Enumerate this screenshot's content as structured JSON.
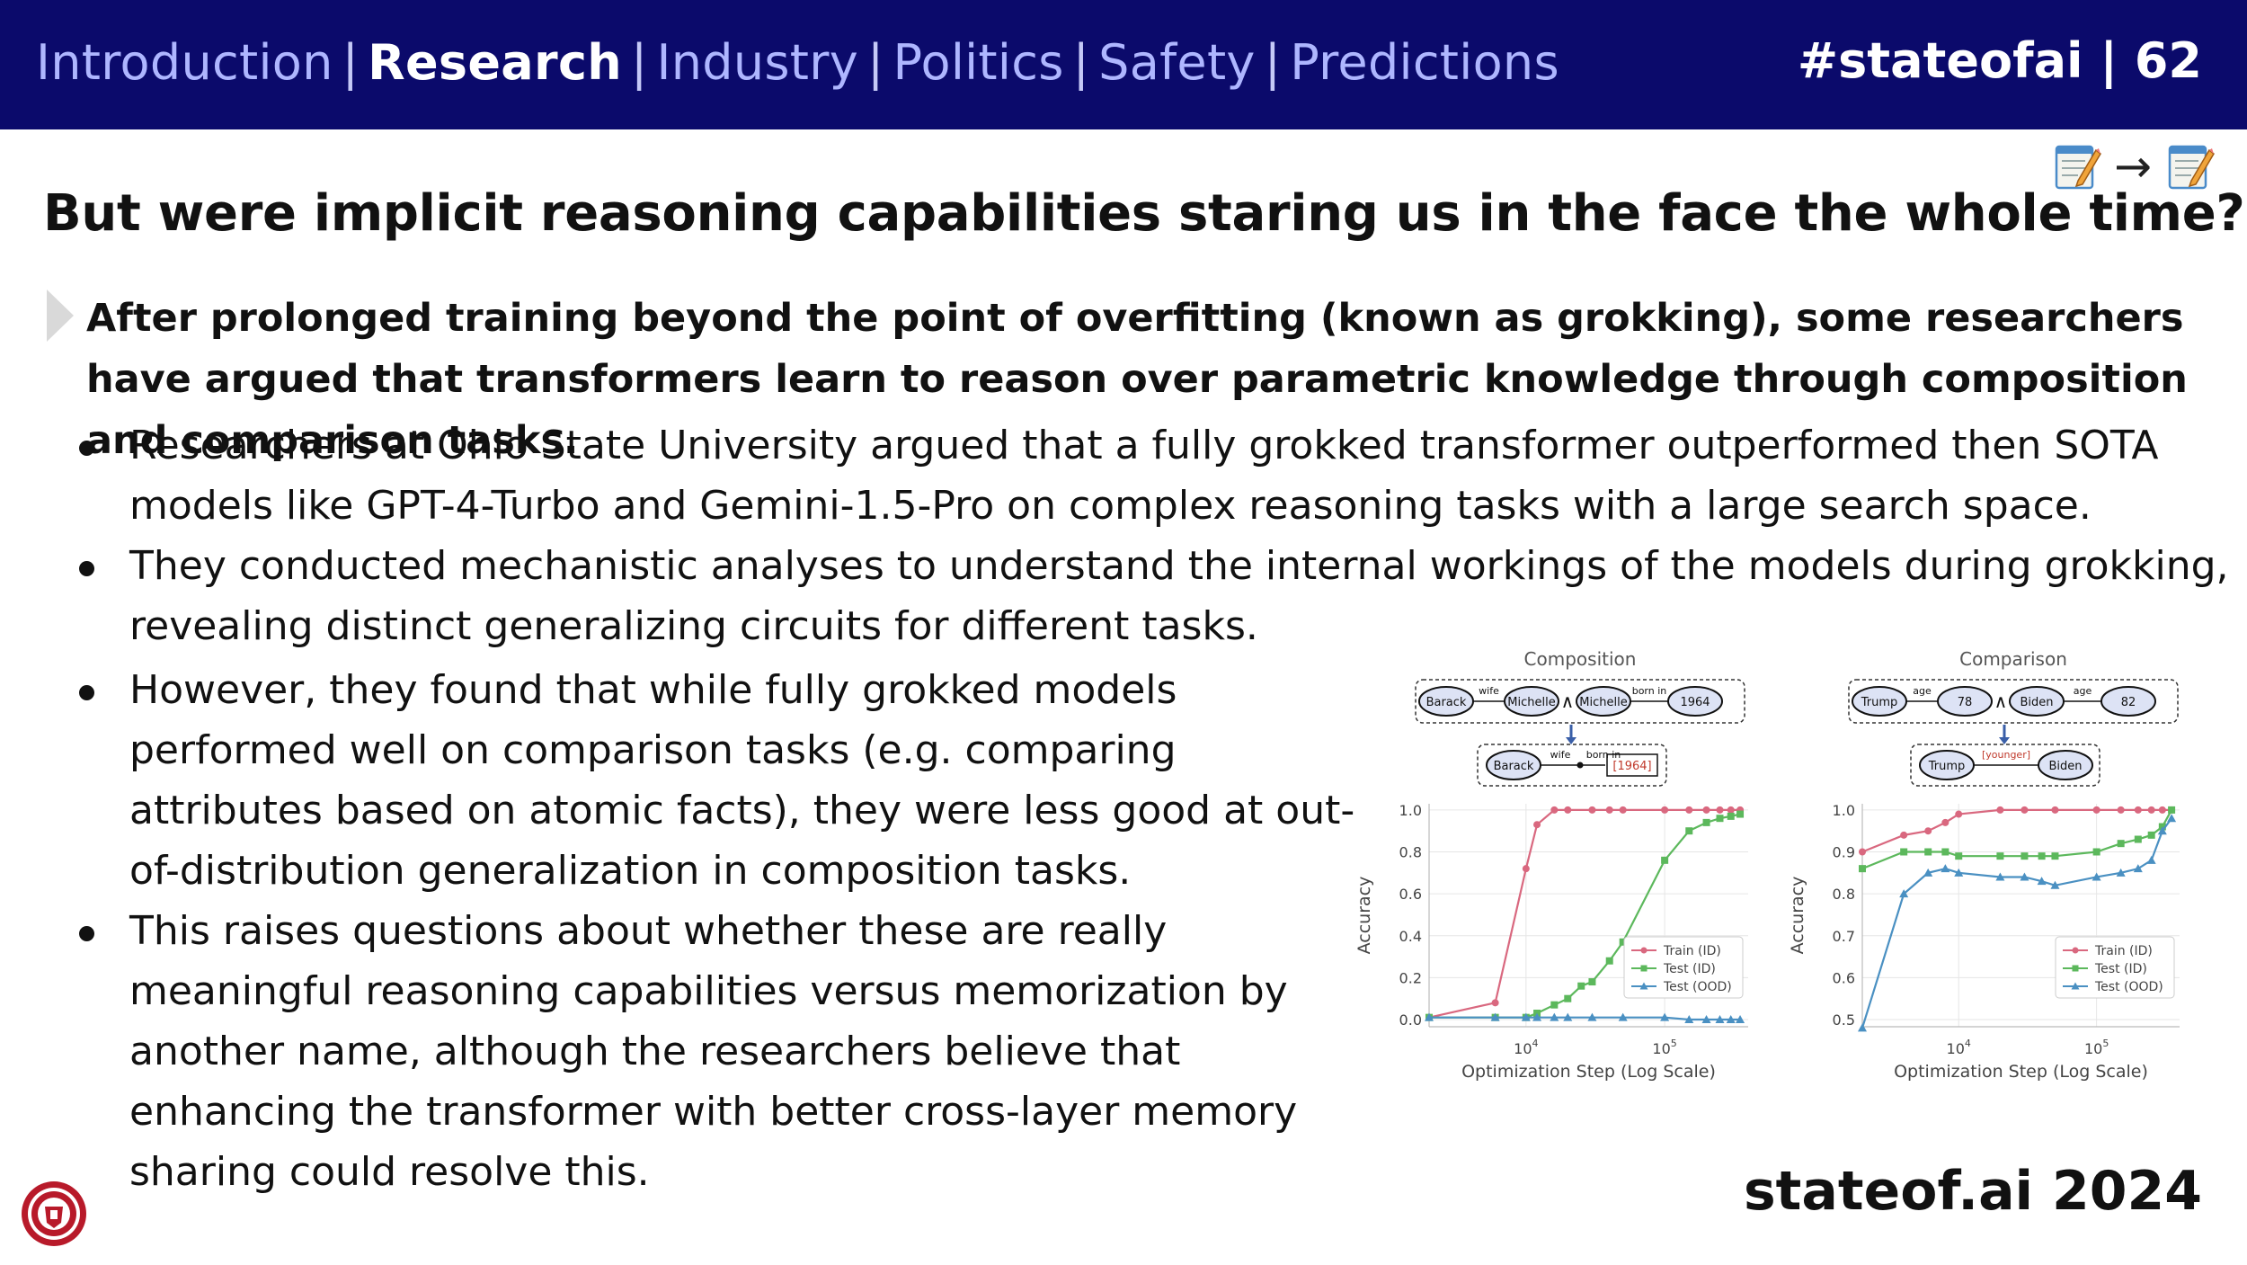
{
  "header": {
    "nav": [
      {
        "label": "Introduction",
        "active": false
      },
      {
        "label": "Research",
        "active": true
      },
      {
        "label": "Industry",
        "active": false
      },
      {
        "label": "Politics",
        "active": false
      },
      {
        "label": "Safety",
        "active": false
      },
      {
        "label": "Predictions",
        "active": false
      }
    ],
    "separator": "|",
    "hashtag": "#stateofai | 62"
  },
  "emoji_arrow": "→",
  "title": "But were implicit reasoning capabilities staring us in the face the whole time?",
  "lead": "After prolonged training beyond the point of overfitting (known as grokking), some researchers have argued that transformers learn to reason over parametric knowledge through composition and comparison tasks.",
  "bullets": [
    "Researchers at Ohio State University argued that a fully grokked transformer outperformed then SOTA models like GPT-4-Turbo and Gemini-1.5-Pro on complex reasoning tasks with a large search space.",
    "They conducted mechanistic analyses to understand the internal workings of the models during grokking, revealing distinct generalizing circuits for different tasks.",
    "However, they found that while fully grokked models performed well on comparison tasks (e.g. comparing attributes based on atomic facts), they were less good at out-of-distribution generalization in composition tasks.",
    "This raises questions about whether these are really meaningful reasoning capabilities versus memorization by another name, although the researchers believe that enhancing the transformer with better cross-layer memory sharing could resolve this."
  ],
  "footer": {
    "brand": "stateof.ai 2024"
  },
  "colors": {
    "bar": "#0b0a6b",
    "train": "#d9687f",
    "test_id": "#5cb85c",
    "test_ood": "#4a90c2"
  },
  "chart_data": [
    {
      "type": "line",
      "title": "Composition",
      "diagram": {
        "top": {
          "nodes": [
            "Barack",
            "Michelle",
            "Michelle",
            "1964"
          ],
          "edges": [
            "wife",
            "born in"
          ],
          "operator": "∧"
        },
        "bottom": {
          "nodes": [
            "Barack",
            "[1964]"
          ],
          "edges": [
            "wife",
            "born in"
          ]
        }
      },
      "xlabel": "Optimization Step (Log Scale)",
      "ylabel": "Accuracy",
      "xscale": "log",
      "xlim": [
        2000,
        400000
      ],
      "ylim": [
        0,
        1.0
      ],
      "x_ticks": [
        {
          "value": 10000,
          "base": "10",
          "exp": "4"
        },
        {
          "value": 100000,
          "base": "10",
          "exp": "5"
        }
      ],
      "y_ticks": [
        "0.0",
        "0.2",
        "0.4",
        "0.6",
        "0.8",
        "1.0"
      ],
      "legend_position": "lower-right",
      "series": [
        {
          "name": "Train (ID)",
          "color": "#d9687f",
          "marker": "circle",
          "x": [
            2000,
            6000,
            10000,
            12000,
            16000,
            20000,
            30000,
            40000,
            50000,
            100000,
            150000,
            200000,
            250000,
            300000,
            350000
          ],
          "y": [
            0.01,
            0.08,
            0.72,
            0.93,
            1.0,
            1.0,
            1.0,
            1.0,
            1.0,
            1.0,
            1.0,
            1.0,
            1.0,
            1.0,
            1.0
          ]
        },
        {
          "name": "Test (ID)",
          "color": "#5cb85c",
          "marker": "square",
          "x": [
            2000,
            6000,
            10000,
            12000,
            16000,
            20000,
            25000,
            30000,
            40000,
            50000,
            100000,
            150000,
            200000,
            250000,
            300000,
            350000
          ],
          "y": [
            0.01,
            0.01,
            0.01,
            0.03,
            0.07,
            0.1,
            0.16,
            0.18,
            0.28,
            0.37,
            0.76,
            0.9,
            0.94,
            0.96,
            0.97,
            0.98
          ]
        },
        {
          "name": "Test (OOD)",
          "color": "#4a90c2",
          "marker": "triangle",
          "x": [
            2000,
            6000,
            10000,
            12000,
            16000,
            20000,
            30000,
            50000,
            100000,
            150000,
            200000,
            250000,
            300000,
            350000
          ],
          "y": [
            0.01,
            0.01,
            0.01,
            0.01,
            0.01,
            0.01,
            0.01,
            0.01,
            0.01,
            0.0,
            0.0,
            0.0,
            0.0,
            0.0
          ]
        }
      ]
    },
    {
      "type": "line",
      "title": "Comparison",
      "diagram": {
        "top": {
          "nodes": [
            "Trump",
            "78",
            "Biden",
            "82"
          ],
          "edges": [
            "age",
            "age"
          ],
          "operator": "∧"
        },
        "bottom": {
          "nodes": [
            "Trump",
            "Biden"
          ],
          "edges": [
            "[younger]"
          ]
        }
      },
      "xlabel": "Optimization Step (Log Scale)",
      "ylabel": "Accuracy",
      "xscale": "log",
      "xlim": [
        2000,
        400000
      ],
      "ylim": [
        0.5,
        1.0
      ],
      "x_ticks": [
        {
          "value": 10000,
          "base": "10",
          "exp": "4"
        },
        {
          "value": 100000,
          "base": "10",
          "exp": "5"
        }
      ],
      "y_ticks": [
        "0.5",
        "0.6",
        "0.7",
        "0.8",
        "0.9",
        "1.0"
      ],
      "legend_position": "lower-right",
      "series": [
        {
          "name": "Train (ID)",
          "color": "#d9687f",
          "marker": "circle",
          "x": [
            2000,
            4000,
            6000,
            8000,
            10000,
            20000,
            30000,
            50000,
            100000,
            150000,
            200000,
            250000,
            300000,
            350000
          ],
          "y": [
            0.9,
            0.94,
            0.95,
            0.97,
            0.99,
            1.0,
            1.0,
            1.0,
            1.0,
            1.0,
            1.0,
            1.0,
            1.0,
            1.0
          ]
        },
        {
          "name": "Test (ID)",
          "color": "#5cb85c",
          "marker": "square",
          "x": [
            2000,
            4000,
            6000,
            8000,
            10000,
            20000,
            30000,
            40000,
            50000,
            100000,
            150000,
            200000,
            250000,
            300000,
            350000
          ],
          "y": [
            0.86,
            0.9,
            0.9,
            0.9,
            0.89,
            0.89,
            0.89,
            0.89,
            0.89,
            0.9,
            0.92,
            0.93,
            0.94,
            0.96,
            1.0
          ]
        },
        {
          "name": "Test (OOD)",
          "color": "#4a90c2",
          "marker": "triangle",
          "x": [
            2000,
            4000,
            6000,
            8000,
            10000,
            20000,
            30000,
            40000,
            50000,
            100000,
            150000,
            200000,
            250000,
            300000,
            350000
          ],
          "y": [
            0.48,
            0.8,
            0.85,
            0.86,
            0.85,
            0.84,
            0.84,
            0.83,
            0.82,
            0.84,
            0.85,
            0.86,
            0.88,
            0.95,
            0.98
          ]
        }
      ]
    }
  ]
}
